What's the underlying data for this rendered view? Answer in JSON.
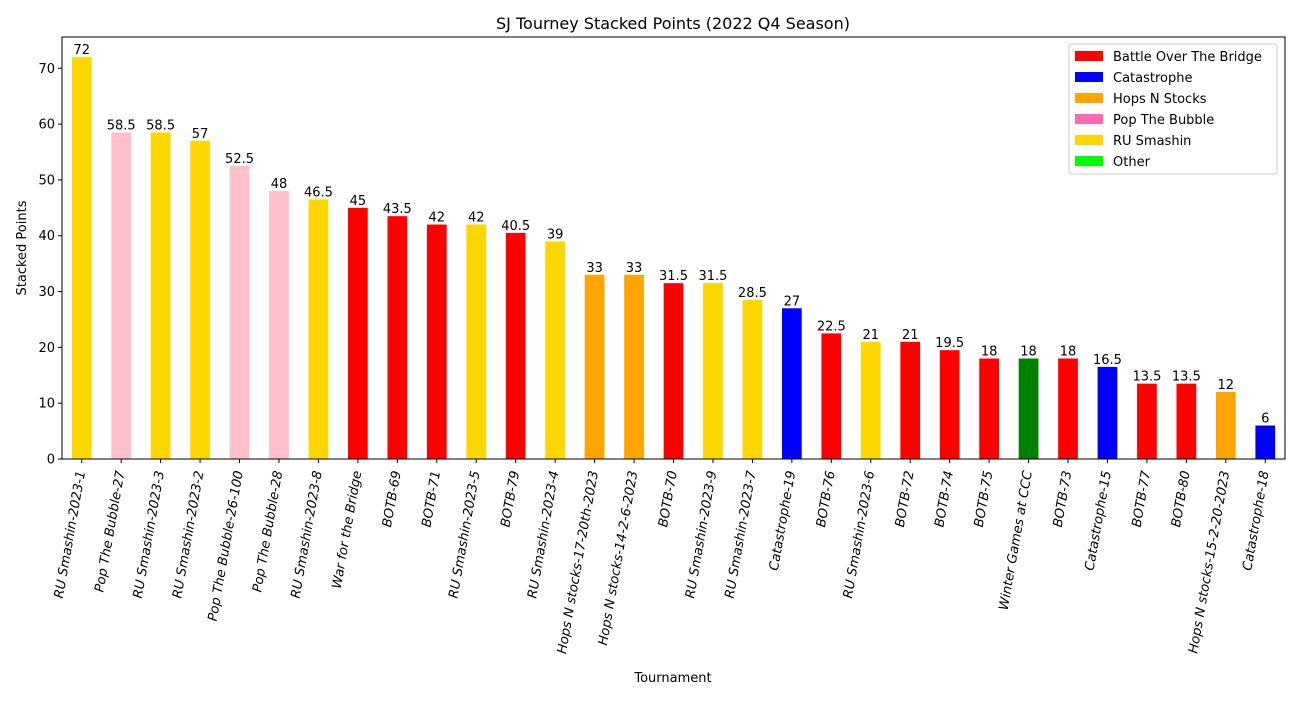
{
  "chart_data": {
    "type": "bar",
    "title": "SJ Tourney Stacked Points (2022 Q4 Season)",
    "xlabel": "Tournament",
    "ylabel": "Stacked Points",
    "ylim": [
      0,
      75.6
    ],
    "yticks": [
      0,
      10,
      20,
      30,
      40,
      50,
      60,
      70
    ],
    "grid": false,
    "legend_position": "top-right",
    "legend": [
      {
        "label": "Battle Over The Bridge",
        "color": "#ff0000"
      },
      {
        "label": "Catastrophe",
        "color": "#0000ff"
      },
      {
        "label": "Hops N Stocks",
        "color": "#ffa500"
      },
      {
        "label": "Pop The Bubble",
        "color": "#ff69b4"
      },
      {
        "label": "RU Smashin",
        "color": "#ffd700"
      },
      {
        "label": "Other",
        "color": "#00ff00"
      }
    ],
    "bars": [
      {
        "category": "RU Smashin-2023-1",
        "value": 72,
        "label": "72",
        "color": "#ffd700"
      },
      {
        "category": "Pop The Bubble-27",
        "value": 58.5,
        "label": "58.5",
        "color": "#ffc0cb"
      },
      {
        "category": "RU Smashin-2023-3",
        "value": 58.5,
        "label": "58.5",
        "color": "#ffd700"
      },
      {
        "category": "RU Smashin-2023-2",
        "value": 57,
        "label": "57",
        "color": "#ffd700"
      },
      {
        "category": "Pop The Bubble-26-100",
        "value": 52.5,
        "label": "52.5",
        "color": "#ffc0cb"
      },
      {
        "category": "Pop The Bubble-28",
        "value": 48,
        "label": "48",
        "color": "#ffc0cb"
      },
      {
        "category": "RU Smashin-2023-8",
        "value": 46.5,
        "label": "46.5",
        "color": "#ffd700"
      },
      {
        "category": "War for the Bridge",
        "value": 45,
        "label": "45",
        "color": "#ff0000"
      },
      {
        "category": "BOTB-69",
        "value": 43.5,
        "label": "43.5",
        "color": "#ff0000"
      },
      {
        "category": "BOTB-71",
        "value": 42,
        "label": "42",
        "color": "#ff0000"
      },
      {
        "category": "RU Smashin-2023-5",
        "value": 42,
        "label": "42",
        "color": "#ffd700"
      },
      {
        "category": "BOTB-79",
        "value": 40.5,
        "label": "40.5",
        "color": "#ff0000"
      },
      {
        "category": "RU Smashin-2023-4",
        "value": 39,
        "label": "39",
        "color": "#ffd700"
      },
      {
        "category": "Hops N stocks-17-20th-2023",
        "value": 33,
        "label": "33",
        "color": "#ffa500"
      },
      {
        "category": "Hops N stocks-14-2-6-2023",
        "value": 33,
        "label": "33",
        "color": "#ffa500"
      },
      {
        "category": "BOTB-70",
        "value": 31.5,
        "label": "31.5",
        "color": "#ff0000"
      },
      {
        "category": "RU Smashin-2023-9",
        "value": 31.5,
        "label": "31.5",
        "color": "#ffd700"
      },
      {
        "category": "RU Smashin-2023-7",
        "value": 28.5,
        "label": "28.5",
        "color": "#ffd700"
      },
      {
        "category": "Catastrophe-19",
        "value": 27,
        "label": "27",
        "color": "#0000ff"
      },
      {
        "category": "BOTB-76",
        "value": 22.5,
        "label": "22.5",
        "color": "#ff0000"
      },
      {
        "category": "RU Smashin-2023-6",
        "value": 21,
        "label": "21",
        "color": "#ffd700"
      },
      {
        "category": "BOTB-72",
        "value": 21,
        "label": "21",
        "color": "#ff0000"
      },
      {
        "category": "BOTB-74",
        "value": 19.5,
        "label": "19.5",
        "color": "#ff0000"
      },
      {
        "category": "BOTB-75",
        "value": 18,
        "label": "18",
        "color": "#ff0000"
      },
      {
        "category": "Winter Games at CCC",
        "value": 18,
        "label": "18",
        "color": "#008000"
      },
      {
        "category": "BOTB-73",
        "value": 18,
        "label": "18",
        "color": "#ff0000"
      },
      {
        "category": "Catastrophe-15",
        "value": 16.5,
        "label": "16.5",
        "color": "#0000ff"
      },
      {
        "category": "BOTB-77",
        "value": 13.5,
        "label": "13.5",
        "color": "#ff0000"
      },
      {
        "category": "BOTB-80",
        "value": 13.5,
        "label": "13.5",
        "color": "#ff0000"
      },
      {
        "category": "Hops N stocks-15-2-20-2023",
        "value": 12,
        "label": "12",
        "color": "#ffa500"
      },
      {
        "category": "Catastrophe-18",
        "value": 6,
        "label": "6",
        "color": "#0000ff"
      }
    ]
  }
}
